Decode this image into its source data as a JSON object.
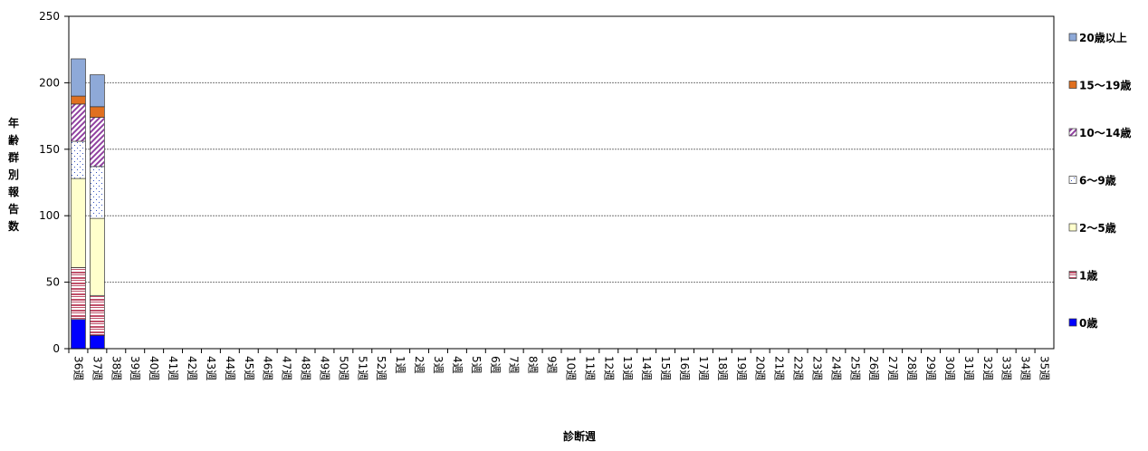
{
  "chart_data": {
    "type": "stacked-bar",
    "y_label": "年齢群別報告数",
    "x_label": "診断週",
    "categories": [
      "36週",
      "37週",
      "38週",
      "39週",
      "40週",
      "41週",
      "42週",
      "43週",
      "44週",
      "45週",
      "46週",
      "47週",
      "48週",
      "49週",
      "50週",
      "51週",
      "52週",
      "1週",
      "2週",
      "3週",
      "4週",
      "5週",
      "6週",
      "7週",
      "8週",
      "9週",
      "10週",
      "11週",
      "12週",
      "13週",
      "14週",
      "15週",
      "16週",
      "17週",
      "18週",
      "19週",
      "20週",
      "21週",
      "22週",
      "23週",
      "24週",
      "25週",
      "26週",
      "27週",
      "28週",
      "29週",
      "30週",
      "31週",
      "32週",
      "33週",
      "34週",
      "35週"
    ],
    "series": [
      {
        "name": "0歳",
        "color": "#0000ff",
        "pattern": "solid",
        "values": [
          22,
          10,
          null,
          null,
          null,
          null,
          null,
          null,
          null,
          null,
          null,
          null,
          null,
          null,
          null,
          null,
          null,
          null,
          null,
          null,
          null,
          null,
          null,
          null,
          null,
          null,
          null,
          null,
          null,
          null,
          null,
          null,
          null,
          null,
          null,
          null,
          null,
          null,
          null,
          null,
          null,
          null,
          null,
          null,
          null,
          null,
          null,
          null,
          null,
          null,
          null,
          null
        ]
      },
      {
        "name": "1歳",
        "color": "#c0506a",
        "pattern": "hstripe",
        "values": [
          39,
          30,
          null,
          null,
          null,
          null,
          null,
          null,
          null,
          null,
          null,
          null,
          null,
          null,
          null,
          null,
          null,
          null,
          null,
          null,
          null,
          null,
          null,
          null,
          null,
          null,
          null,
          null,
          null,
          null,
          null,
          null,
          null,
          null,
          null,
          null,
          null,
          null,
          null,
          null,
          null,
          null,
          null,
          null,
          null,
          null,
          null,
          null,
          null,
          null,
          null,
          null
        ]
      },
      {
        "name": "2〜5歳",
        "color": "#ffffcc",
        "pattern": "solid",
        "values": [
          67,
          58,
          null,
          null,
          null,
          null,
          null,
          null,
          null,
          null,
          null,
          null,
          null,
          null,
          null,
          null,
          null,
          null,
          null,
          null,
          null,
          null,
          null,
          null,
          null,
          null,
          null,
          null,
          null,
          null,
          null,
          null,
          null,
          null,
          null,
          null,
          null,
          null,
          null,
          null,
          null,
          null,
          null,
          null,
          null,
          null,
          null,
          null,
          null,
          null,
          null,
          null
        ]
      },
      {
        "name": "6〜9歳",
        "color": "#3050c0",
        "pattern": "dots",
        "values": [
          28,
          39,
          null,
          null,
          null,
          null,
          null,
          null,
          null,
          null,
          null,
          null,
          null,
          null,
          null,
          null,
          null,
          null,
          null,
          null,
          null,
          null,
          null,
          null,
          null,
          null,
          null,
          null,
          null,
          null,
          null,
          null,
          null,
          null,
          null,
          null,
          null,
          null,
          null,
          null,
          null,
          null,
          null,
          null,
          null,
          null,
          null,
          null,
          null,
          null,
          null,
          null
        ]
      },
      {
        "name": "10〜14歳",
        "color": "#9040a0",
        "pattern": "diagonal",
        "values": [
          28,
          37,
          null,
          null,
          null,
          null,
          null,
          null,
          null,
          null,
          null,
          null,
          null,
          null,
          null,
          null,
          null,
          null,
          null,
          null,
          null,
          null,
          null,
          null,
          null,
          null,
          null,
          null,
          null,
          null,
          null,
          null,
          null,
          null,
          null,
          null,
          null,
          null,
          null,
          null,
          null,
          null,
          null,
          null,
          null,
          null,
          null,
          null,
          null,
          null,
          null,
          null
        ]
      },
      {
        "name": "15〜19歳",
        "color": "#e07020",
        "pattern": "solid",
        "values": [
          6,
          8,
          null,
          null,
          null,
          null,
          null,
          null,
          null,
          null,
          null,
          null,
          null,
          null,
          null,
          null,
          null,
          null,
          null,
          null,
          null,
          null,
          null,
          null,
          null,
          null,
          null,
          null,
          null,
          null,
          null,
          null,
          null,
          null,
          null,
          null,
          null,
          null,
          null,
          null,
          null,
          null,
          null,
          null,
          null,
          null,
          null,
          null,
          null,
          null,
          null,
          null
        ]
      },
      {
        "name": "20歳以上",
        "color": "#8ea9d8",
        "pattern": "solid",
        "values": [
          28,
          24,
          null,
          null,
          null,
          null,
          null,
          null,
          null,
          null,
          null,
          null,
          null,
          null,
          null,
          null,
          null,
          null,
          null,
          null,
          null,
          null,
          null,
          null,
          null,
          null,
          null,
          null,
          null,
          null,
          null,
          null,
          null,
          null,
          null,
          null,
          null,
          null,
          null,
          null,
          null,
          null,
          null,
          null,
          null,
          null,
          null,
          null,
          null,
          null,
          null,
          null
        ]
      }
    ],
    "ylim": [
      0,
      250
    ],
    "yticks": [
      0,
      50,
      100,
      150,
      200,
      250
    ],
    "grid": true,
    "legend": "right"
  }
}
